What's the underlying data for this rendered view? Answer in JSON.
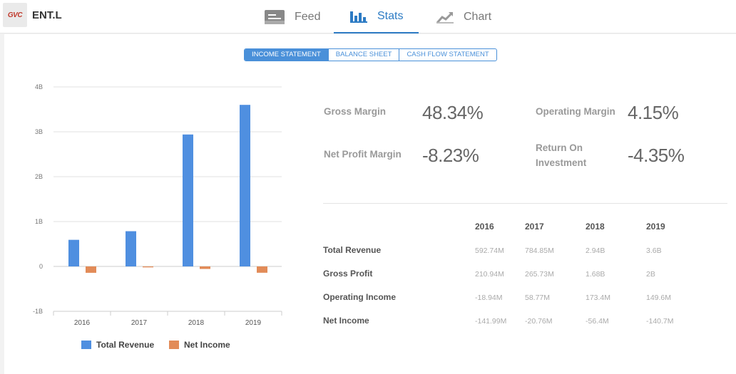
{
  "header": {
    "logo_text": "GVC",
    "ticker": "ENT.L",
    "tabs": [
      {
        "label": "Feed",
        "icon": "feed-icon"
      },
      {
        "label": "Stats",
        "icon": "bar-chart-icon",
        "active": true
      },
      {
        "label": "Chart",
        "icon": "line-chart-icon"
      }
    ]
  },
  "statement_tabs": [
    {
      "label": "INCOME STATEMENT",
      "active": true
    },
    {
      "label": "BALANCE SHEET"
    },
    {
      "label": "CASH FLOW STATEMENT"
    }
  ],
  "metrics": {
    "gross_margin": {
      "label": "Gross Margin",
      "value": "48.34%"
    },
    "operating_margin": {
      "label": "Operating Margin",
      "value": "4.15%"
    },
    "net_profit_margin": {
      "label": "Net Profit Margin",
      "value": "-8.23%"
    },
    "return_on_investment": {
      "label": "Return On Investment",
      "value": "-4.35%"
    }
  },
  "table": {
    "years": [
      "2016",
      "2017",
      "2018",
      "2019"
    ],
    "rows": [
      {
        "label": "Total Revenue",
        "values": [
          "592.74M",
          "784.85M",
          "2.94B",
          "3.6B"
        ]
      },
      {
        "label": "Gross Profit",
        "values": [
          "210.94M",
          "265.73M",
          "1.68B",
          "2B"
        ]
      },
      {
        "label": "Operating Income",
        "values": [
          "-18.94M",
          "58.77M",
          "173.4M",
          "149.6M"
        ]
      },
      {
        "label": "Net Income",
        "values": [
          "-141.99M",
          "-20.76M",
          "-56.4M",
          "-140.7M"
        ]
      }
    ]
  },
  "colors": {
    "accent": "#2d7bc4",
    "revenue": "#4f8fe0",
    "net_income": "#e28b58"
  },
  "chart_data": {
    "type": "bar",
    "categories": [
      "2016",
      "2017",
      "2018",
      "2019"
    ],
    "series": [
      {
        "name": "Total Revenue",
        "values": [
          0.59274,
          0.78485,
          2.94,
          3.6
        ],
        "color": "#4f8fe0"
      },
      {
        "name": "Net Income",
        "values": [
          -0.14199,
          -0.02076,
          -0.0564,
          -0.1407
        ],
        "color": "#e28b58"
      }
    ],
    "ylim": [
      -1,
      4
    ],
    "yticks": [
      -1,
      0,
      1,
      2,
      3,
      4
    ],
    "ytick_labels": [
      "-1B",
      "0",
      "1B",
      "2B",
      "3B",
      "4B"
    ],
    "grid": true,
    "legend": "bottom"
  }
}
